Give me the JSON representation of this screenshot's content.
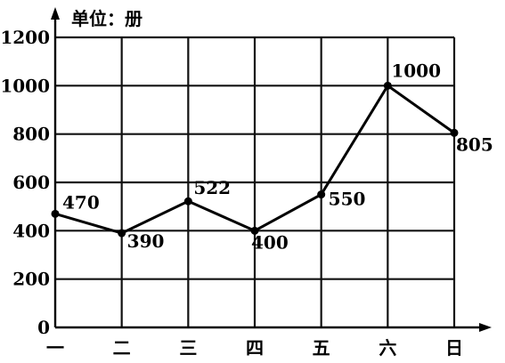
{
  "chart_data": {
    "type": "line",
    "unit_label": "单位：册",
    "categories": [
      "一",
      "二",
      "三",
      "四",
      "五",
      "六",
      "日"
    ],
    "y_ticks": [
      "0",
      "200",
      "400",
      "600",
      "800",
      "1000",
      "1200"
    ],
    "ylim": [
      0,
      1200
    ],
    "grid": true,
    "series": [
      {
        "values": [
          470,
          390,
          522,
          400,
          550,
          1000,
          805
        ],
        "labels": [
          "470",
          "390",
          "522",
          "400",
          "550",
          "1000",
          "805"
        ]
      }
    ]
  }
}
